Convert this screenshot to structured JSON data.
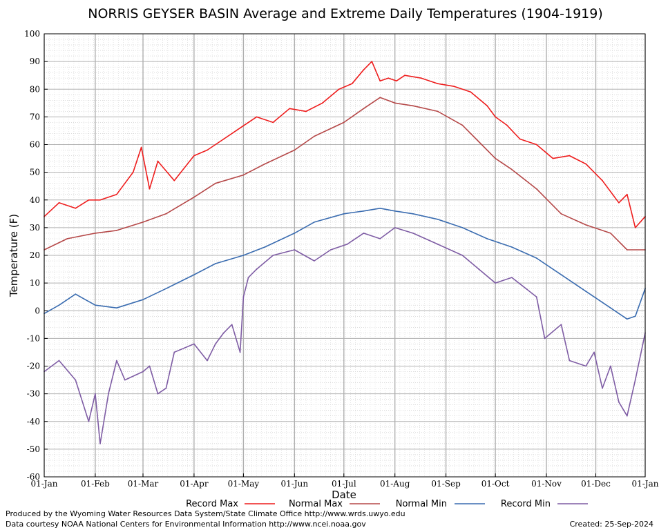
{
  "chart_data": {
    "type": "line",
    "title": "NORRIS GEYSER BASIN Average and Extreme Daily Temperatures (1904-1919)",
    "xlabel": "Date",
    "ylabel": "Temperature (F)",
    "ylim": [
      -60,
      100
    ],
    "yticks": [
      100,
      90,
      80,
      70,
      60,
      50,
      40,
      30,
      20,
      10,
      0,
      -10,
      -20,
      -30,
      -40,
      -50,
      -60
    ],
    "xlim_days": [
      1,
      366
    ],
    "xticks": [
      {
        "label": "01-Jan",
        "day": 1
      },
      {
        "label": "01-Feb",
        "day": 32
      },
      {
        "label": "01-Mar",
        "day": 61
      },
      {
        "label": "01-Apr",
        "day": 92
      },
      {
        "label": "01-May",
        "day": 122
      },
      {
        "label": "01-Jun",
        "day": 153
      },
      {
        "label": "01-Jul",
        "day": 183
      },
      {
        "label": "01-Aug",
        "day": 214
      },
      {
        "label": "01-Sep",
        "day": 245
      },
      {
        "label": "01-Oct",
        "day": 275
      },
      {
        "label": "01-Nov",
        "day": 306
      },
      {
        "label": "01-Dec",
        "day": 336
      },
      {
        "label": "01-Jan",
        "day": 366
      }
    ],
    "grid": true,
    "legend_position": "bottom",
    "series": [
      {
        "name": "Record Max",
        "color": "#ee1c1c",
        "x": [
          1,
          10,
          20,
          28,
          35,
          45,
          55,
          60,
          65,
          70,
          80,
          92,
          100,
          110,
          120,
          130,
          140,
          150,
          160,
          170,
          180,
          188,
          195,
          200,
          205,
          210,
          215,
          220,
          230,
          240,
          250,
          260,
          270,
          275,
          282,
          290,
          300,
          310,
          320,
          330,
          340,
          350,
          355,
          360,
          366
        ],
        "y": [
          34,
          39,
          37,
          40,
          40,
          42,
          50,
          59,
          44,
          54,
          47,
          56,
          58,
          62,
          66,
          70,
          68,
          73,
          72,
          75,
          80,
          82,
          87,
          90,
          83,
          84,
          83,
          85,
          84,
          82,
          81,
          79,
          74,
          70,
          67,
          62,
          60,
          55,
          56,
          53,
          47,
          39,
          42,
          30,
          34
        ]
      },
      {
        "name": "Normal Max",
        "color": "#b54848",
        "x": [
          1,
          15,
          32,
          45,
          61,
          75,
          92,
          105,
          122,
          135,
          153,
          165,
          183,
          195,
          205,
          214,
          225,
          240,
          255,
          265,
          275,
          285,
          300,
          315,
          330,
          345,
          355,
          366
        ],
        "y": [
          22,
          26,
          28,
          29,
          32,
          35,
          41,
          46,
          49,
          53,
          58,
          63,
          68,
          73,
          77,
          75,
          74,
          72,
          67,
          61,
          55,
          51,
          44,
          35,
          31,
          28,
          22,
          22
        ]
      },
      {
        "name": "Normal Min",
        "color": "#3a6cb0",
        "x": [
          1,
          10,
          20,
          32,
          45,
          61,
          75,
          92,
          105,
          122,
          135,
          153,
          165,
          183,
          195,
          205,
          214,
          225,
          240,
          255,
          270,
          285,
          300,
          315,
          330,
          345,
          355,
          360,
          366
        ],
        "y": [
          -1,
          2,
          6,
          2,
          1,
          4,
          8,
          13,
          17,
          20,
          23,
          28,
          32,
          35,
          36,
          37,
          36,
          35,
          33,
          30,
          26,
          23,
          19,
          13,
          7,
          1,
          -3,
          -2,
          8
        ]
      },
      {
        "name": "Record Min",
        "color": "#7e5ca4",
        "x": [
          1,
          10,
          20,
          28,
          32,
          35,
          40,
          45,
          50,
          61,
          65,
          70,
          75,
          80,
          92,
          100,
          105,
          110,
          115,
          120,
          122,
          125,
          130,
          140,
          153,
          165,
          175,
          185,
          195,
          205,
          214,
          225,
          240,
          255,
          265,
          275,
          285,
          300,
          305,
          315,
          320,
          330,
          335,
          340,
          345,
          350,
          355,
          360,
          366
        ],
        "y": [
          -22,
          -18,
          -25,
          -40,
          -30,
          -48,
          -30,
          -18,
          -25,
          -22,
          -20,
          -30,
          -28,
          -15,
          -12,
          -18,
          -12,
          -8,
          -5,
          -15,
          5,
          12,
          15,
          20,
          22,
          18,
          22,
          24,
          28,
          26,
          30,
          28,
          24,
          20,
          15,
          10,
          12,
          5,
          -10,
          -5,
          -18,
          -20,
          -15,
          -28,
          -20,
          -33,
          -38,
          -25,
          -8
        ]
      }
    ]
  },
  "footer": {
    "produced_by": "Produced by the Wyoming Water Resources Data System/State Climate Office http://www.wrds.uwyo.edu",
    "courtesy": "Data courtesy NOAA National Centers for Environmental Information http://www.ncei.noaa.gov",
    "created": "Created:  25-Sep-2024"
  }
}
